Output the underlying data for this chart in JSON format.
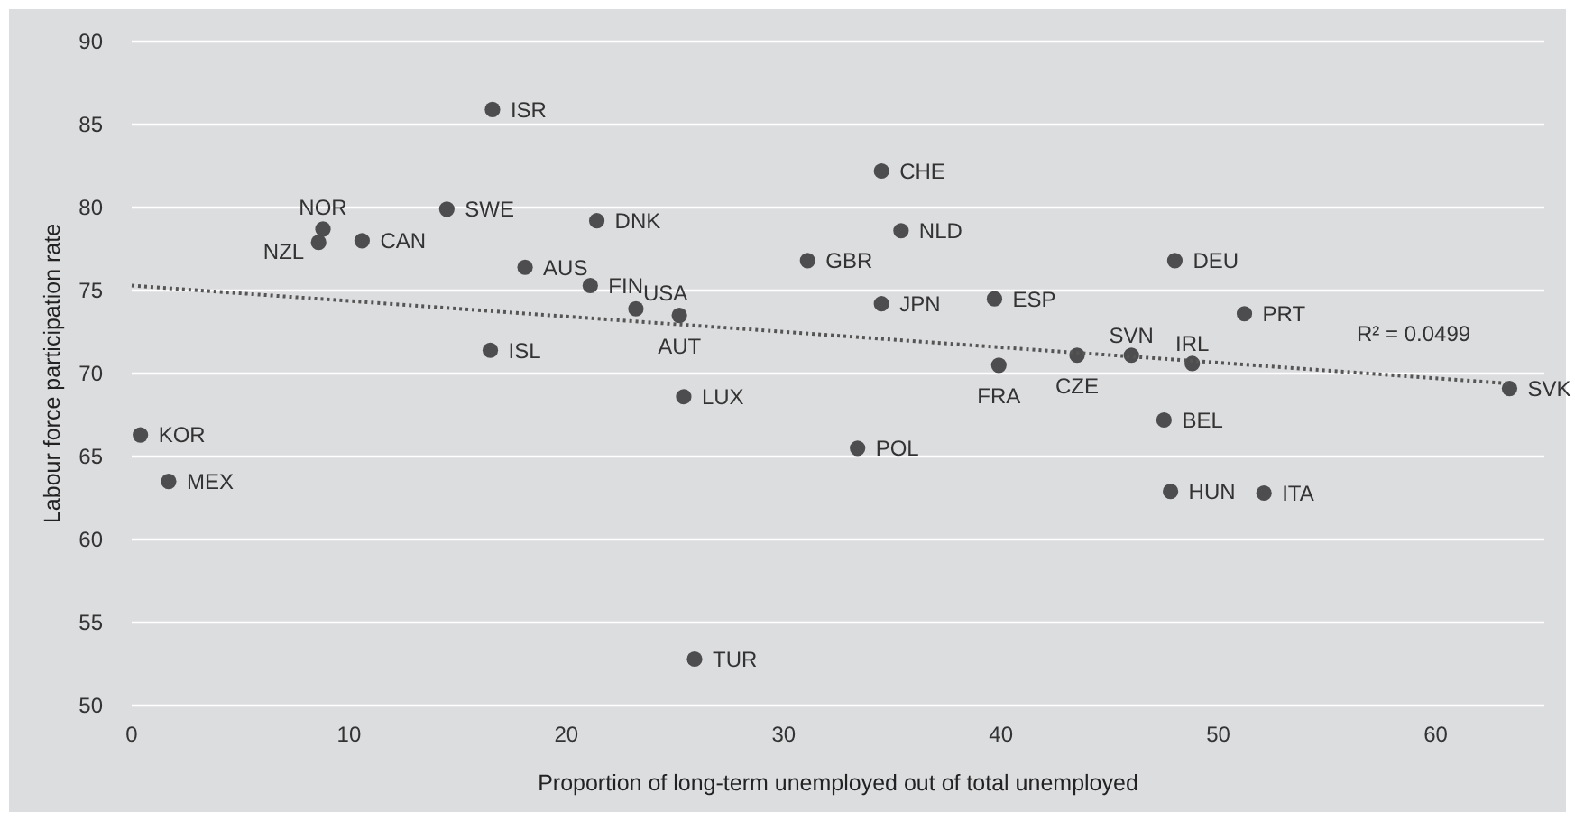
{
  "chart_data": {
    "type": "scatter",
    "xlabel": "Proportion of long-term unemployed out of total unemployed",
    "ylabel": "Labour force participation rate",
    "xlim": [
      0,
      65
    ],
    "ylim": [
      50,
      90
    ],
    "xticks": [
      0,
      10,
      20,
      30,
      40,
      50,
      60
    ],
    "yticks": [
      50,
      55,
      60,
      65,
      70,
      75,
      80,
      85,
      90
    ],
    "grid": "y",
    "marker": "circle",
    "series": [
      {
        "color": "#4d4d4f",
        "x": [
          16.6,
          8.8,
          8.6,
          10.6,
          14.5,
          21.4,
          18.1,
          21.1,
          23.2,
          25.2,
          16.5,
          25.4,
          0.4,
          1.7,
          25.9,
          34.5,
          35.4,
          31.1,
          48.0,
          34.5,
          39.7,
          51.2,
          46.0,
          43.5,
          39.9,
          48.8,
          63.4,
          47.5,
          33.4,
          47.8,
          52.1
        ],
        "values": [
          85.9,
          78.7,
          77.9,
          78.0,
          79.9,
          79.2,
          76.4,
          75.3,
          73.9,
          73.5,
          71.4,
          68.6,
          66.3,
          63.5,
          52.8,
          82.2,
          78.6,
          76.8,
          76.8,
          74.2,
          74.5,
          73.6,
          71.1,
          71.1,
          70.5,
          70.6,
          69.1,
          67.2,
          65.5,
          62.9,
          62.8
        ]
      },
      {
        "type": "line",
        "color": "#555555",
        "line_style": "dotted",
        "marker": "none",
        "x": [
          0,
          63.4
        ],
        "values": [
          75.3,
          69.4
        ]
      }
    ],
    "annotations": [
      {
        "text": "ISR",
        "x": 16.6,
        "y": 85.9
      },
      {
        "text": "NOR",
        "x": 8.8,
        "y": 78.7
      },
      {
        "text": "NZL",
        "x": 8.6,
        "y": 77.9
      },
      {
        "text": "CAN",
        "x": 10.6,
        "y": 78.0
      },
      {
        "text": "SWE",
        "x": 14.5,
        "y": 79.9
      },
      {
        "text": "DNK",
        "x": 21.4,
        "y": 79.2
      },
      {
        "text": "AUS",
        "x": 18.1,
        "y": 76.4
      },
      {
        "text": "FIN",
        "x": 21.1,
        "y": 75.3
      },
      {
        "text": "USA",
        "x": 23.2,
        "y": 73.9
      },
      {
        "text": "AUT",
        "x": 25.2,
        "y": 73.5
      },
      {
        "text": "ISL",
        "x": 16.5,
        "y": 71.4
      },
      {
        "text": "LUX",
        "x": 25.4,
        "y": 68.6
      },
      {
        "text": "KOR",
        "x": 0.4,
        "y": 66.3
      },
      {
        "text": "MEX",
        "x": 1.7,
        "y": 63.5
      },
      {
        "text": "TUR",
        "x": 25.9,
        "y": 52.8
      },
      {
        "text": "CHE",
        "x": 34.5,
        "y": 82.2
      },
      {
        "text": "NLD",
        "x": 35.4,
        "y": 78.6
      },
      {
        "text": "GBR",
        "x": 31.1,
        "y": 76.8
      },
      {
        "text": "DEU",
        "x": 48.0,
        "y": 76.8
      },
      {
        "text": "JPN",
        "x": 34.5,
        "y": 74.2
      },
      {
        "text": "ESP",
        "x": 39.7,
        "y": 74.5
      },
      {
        "text": "PRT",
        "x": 51.2,
        "y": 73.6
      },
      {
        "text": "SVN",
        "x": 46.0,
        "y": 71.1
      },
      {
        "text": "CZE",
        "x": 43.5,
        "y": 71.1
      },
      {
        "text": "FRA",
        "x": 39.9,
        "y": 70.5
      },
      {
        "text": "IRL",
        "x": 48.8,
        "y": 70.6
      },
      {
        "text": "SVK",
        "x": 63.4,
        "y": 69.1
      },
      {
        "text": "BEL",
        "x": 47.5,
        "y": 67.2
      },
      {
        "text": "POL",
        "x": 33.4,
        "y": 65.5
      },
      {
        "text": "HUN",
        "x": 47.8,
        "y": 62.9
      },
      {
        "text": "ITA",
        "x": 52.1,
        "y": 62.8
      },
      "R² = 0.0499"
    ]
  }
}
